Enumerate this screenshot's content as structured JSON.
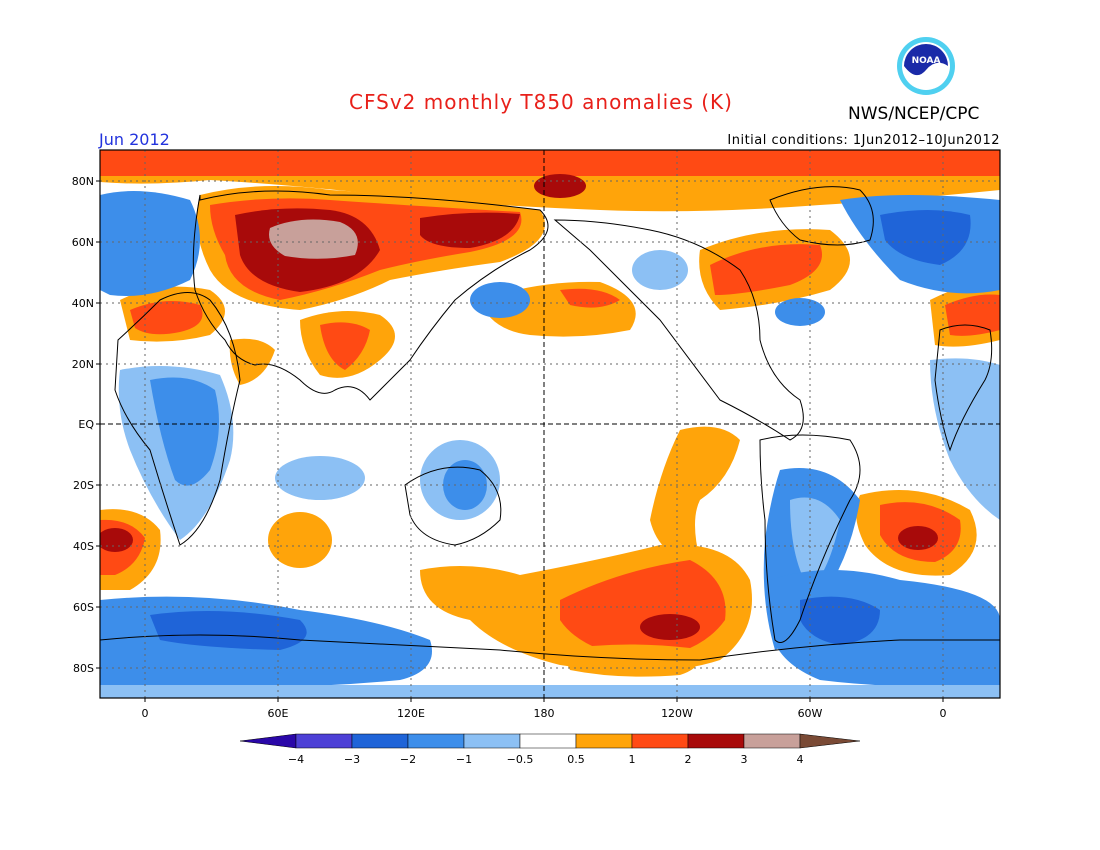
{
  "map": {
    "title": "CFSv2 monthly T850 anomalies (K)",
    "agency": "NWS/NCEP/CPC",
    "logo_text": "NOAA",
    "date_label": "Jun 2012",
    "initial_conditions": "Initial conditions: 1Jun2012–10Jun2012",
    "variable": "T850 anomaly",
    "units": "K",
    "lat_labels": [
      "80N",
      "60N",
      "40N",
      "20N",
      "EQ",
      "20S",
      "40S",
      "60S",
      "80S"
    ],
    "lon_labels": [
      "0",
      "60E",
      "120E",
      "180",
      "120W",
      "60W",
      "0"
    ]
  },
  "colorbar": {
    "levels": [
      "−4",
      "−3",
      "−2",
      "−1",
      "−0.5",
      "0.5",
      "1",
      "2",
      "3",
      "4"
    ],
    "colors": [
      "#2a07a8",
      "#4d40d6",
      "#1f64d8",
      "#3d8eea",
      "#8cc0f4",
      "#ffffff",
      "#ffa40a",
      "#ff4a14",
      "#a80a0a",
      "#c8a09a",
      "#7a4a35"
    ]
  },
  "colors": {
    "title": "#e8201a",
    "date": "#2233dd",
    "cold_strong": "#1f64d8",
    "cold": "#3d8eea",
    "cold_weak": "#8cc0f4",
    "warm_weak": "#ffa40a",
    "warm": "#ff4a14",
    "warm_strong": "#a80a0a",
    "warm_extreme": "#c8a09a"
  }
}
